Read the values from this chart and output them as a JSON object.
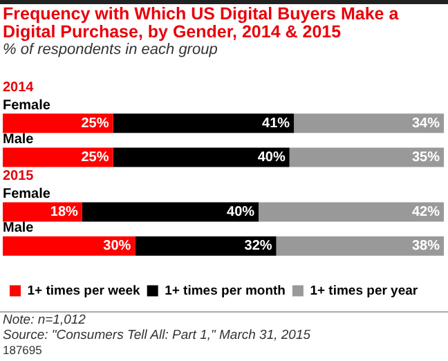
{
  "chart_data": {
    "type": "bar",
    "orientation": "horizontal",
    "stacked": true,
    "title": "Frequency with Which US Digital Buyers Make a Digital Purchase, by Gender, 2014 & 2015",
    "subtitle": "% of respondents in each group",
    "categories": [
      "Female",
      "Male",
      "Female",
      "Male"
    ],
    "series": [
      {
        "name": "1+ times per week",
        "color": "#ff0000",
        "values": [
          25,
          25,
          18,
          30
        ],
        "value_labels": [
          "25%",
          "25%",
          "18%",
          "30%"
        ]
      },
      {
        "name": "1+ times per month",
        "color": "#000000",
        "values": [
          41,
          40,
          40,
          32
        ],
        "value_labels": [
          "41%",
          "40%",
          "40%",
          "32%"
        ]
      },
      {
        "name": "1+ times per year",
        "color": "#999999",
        "values": [
          34,
          35,
          42,
          38
        ],
        "value_labels": [
          "34%",
          "35%",
          "42%",
          "38%"
        ]
      }
    ],
    "legend": "bottom left",
    "annotations": [
      "2014",
      "2015",
      "Note: n=1,012",
      "Source: \"Consumers Tell All: Part 1,\" March 31, 2015",
      "187695"
    ]
  }
}
